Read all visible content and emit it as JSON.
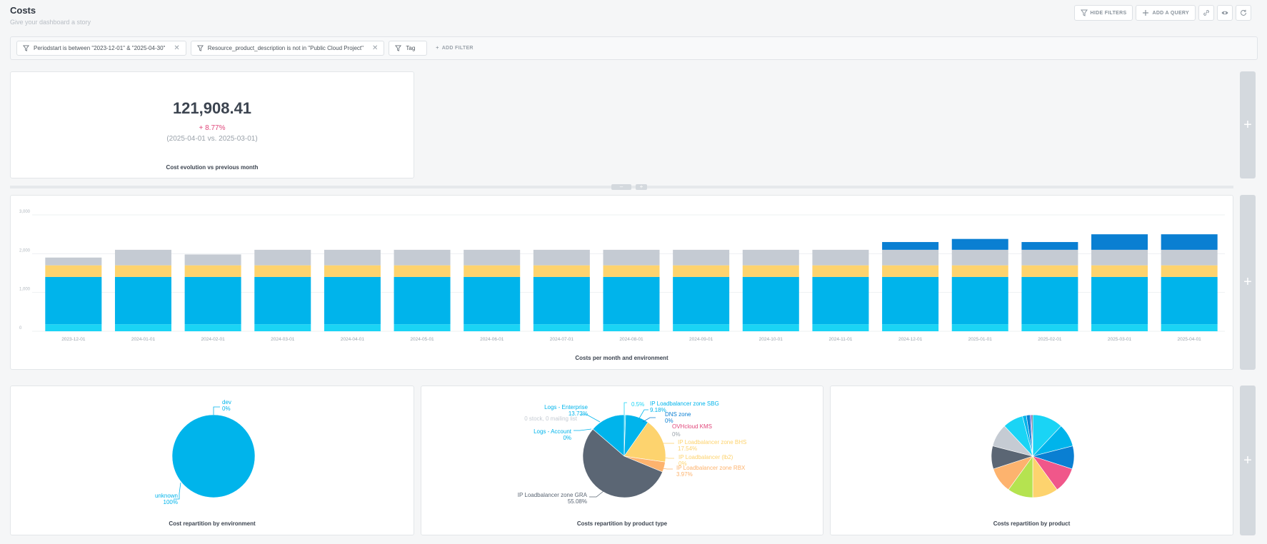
{
  "header": {
    "title": "Costs",
    "subtitle": "Give your dashboard a story"
  },
  "actions": {
    "hide_filters": "HIDE FILTERS",
    "add_query": "ADD A QUERY"
  },
  "filters": {
    "items": [
      {
        "label": "Periodstart is between \"2023-12-01\" & \"2025-04-30\""
      },
      {
        "label": "Resource_product_description is not in \"Public Cloud Project\""
      },
      {
        "label": "Tag"
      }
    ],
    "add_label": "ADD FILTER"
  },
  "kpi": {
    "value": "121,908.41",
    "delta": "+ 8.77%",
    "dates": "(2025-04-01 vs. 2025-03-01)",
    "title": "Cost evolution vs previous month"
  },
  "divider": {
    "left_btn": "–",
    "right_btn": "+"
  },
  "side_add": "+",
  "colors": {
    "cyan": "#00b4eb",
    "light_cyan": "#1ad4f5",
    "yellow": "#fdd36e",
    "gray": "#c5cbd3",
    "blue": "#0a7fd2",
    "dark": "#5b6674"
  },
  "chart_data": [
    {
      "type": "bar",
      "stacked": true,
      "title": "Costs per month  and environment",
      "yticks": [
        "0",
        "1,000",
        "2,000",
        "3,000"
      ],
      "ylim": [
        0,
        3000
      ],
      "categories": [
        "2023-12-01",
        "2024-01-01",
        "2024-02-01",
        "2024-03-01",
        "2024-04-01",
        "2024-05-01",
        "2024-06-01",
        "2024-07-01",
        "2024-08-01",
        "2024-09-01",
        "2024-10-01",
        "2024-11-01",
        "2024-12-01",
        "2025-01-01",
        "2025-02-01",
        "2025-03-01",
        "2025-04-01"
      ],
      "series": [
        {
          "color": "#1ad4f5",
          "values": [
            180,
            180,
            180,
            180,
            180,
            180,
            180,
            180,
            180,
            180,
            180,
            180,
            180,
            180,
            180,
            180,
            180
          ]
        },
        {
          "color": "#00b4eb",
          "values": [
            1220,
            1220,
            1220,
            1220,
            1220,
            1220,
            1220,
            1220,
            1220,
            1220,
            1220,
            1220,
            1220,
            1220,
            1220,
            1220,
            1220
          ]
        },
        {
          "color": "#fdd36e",
          "values": [
            300,
            300,
            300,
            300,
            300,
            300,
            300,
            300,
            300,
            300,
            300,
            300,
            300,
            300,
            300,
            300,
            300
          ]
        },
        {
          "color": "#c5cbd3",
          "values": [
            200,
            400,
            280,
            400,
            400,
            400,
            400,
            400,
            400,
            400,
            400,
            400,
            400,
            400,
            400,
            400,
            400
          ]
        },
        {
          "color": "#0a7fd2",
          "values": [
            0,
            0,
            0,
            0,
            0,
            0,
            0,
            0,
            0,
            0,
            0,
            0,
            200,
            280,
            200,
            400,
            400
          ]
        }
      ]
    },
    {
      "type": "pie",
      "title": "Cost repartition by environment",
      "slices": [
        {
          "label": "dev",
          "pct": "0%",
          "value": 0,
          "color": "#00b4eb"
        },
        {
          "label": "unknown",
          "pct": "100%",
          "value": 100,
          "color": "#00b4eb"
        }
      ]
    },
    {
      "type": "pie",
      "title": "Costs repartition by product type",
      "slices": [
        {
          "label": "IP Loadbalancer zone GRA",
          "pct": "55.08%",
          "value": 55.08,
          "color": "#5b6674"
        },
        {
          "label": "Logs - Enterprise",
          "pct": "13.73%",
          "value": 13.73,
          "color": "#00b4eb"
        },
        {
          "label": "0.5%",
          "pct": "",
          "value": 0.5,
          "color": "#1ad4f5"
        },
        {
          "label": "IP Loadbalancer zone SBG",
          "pct": "9.18%",
          "value": 9.18,
          "color": "#00b4eb"
        },
        {
          "label": "DNS zone",
          "pct": "0%",
          "value": 0,
          "color": "#0a7fd2"
        },
        {
          "label": "OVHcloud KMS",
          "pct": "0%",
          "value": 0,
          "color": "#e0467a"
        },
        {
          "label": "IP Loadbalancer zone BHS",
          "pct": "17.54%",
          "value": 17.54,
          "color": "#fdd36e"
        },
        {
          "label": "IP Loadbalancer (lb2)",
          "pct": "0%",
          "value": 0,
          "color": "#fdd36e"
        },
        {
          "label": "IP Loadbalancer zone RBX",
          "pct": "3.97%",
          "value": 3.97,
          "color": "#fdb36e"
        },
        {
          "label": "Logs - Account",
          "pct": "0%",
          "value": 0,
          "color": "#00b4eb"
        },
        {
          "label": "0 stock, 0 mailing list",
          "pct": "",
          "value": 0,
          "color": "#c5cbd3"
        }
      ]
    },
    {
      "type": "pie",
      "title": "Costs repartition by product",
      "slices": [
        {
          "value": 12,
          "color": "#1ad4f5"
        },
        {
          "value": 9,
          "color": "#00b4eb"
        },
        {
          "value": 9,
          "color": "#0a7fd2"
        },
        {
          "value": 10,
          "color": "#f0578a"
        },
        {
          "value": 10,
          "color": "#fdd36e"
        },
        {
          "value": 10,
          "color": "#b5e350"
        },
        {
          "value": 10,
          "color": "#fdb36e"
        },
        {
          "value": 9,
          "color": "#5b6674"
        },
        {
          "value": 9,
          "color": "#c5cbd3"
        },
        {
          "value": 8,
          "color": "#1ad4f5"
        },
        {
          "value": 1.5,
          "color": "#00b4eb"
        },
        {
          "value": 1.5,
          "color": "#0a7fd2"
        },
        {
          "value": 0.5,
          "color": "#7a4fd2"
        },
        {
          "value": 0.5,
          "color": "#5b6674"
        }
      ]
    }
  ]
}
